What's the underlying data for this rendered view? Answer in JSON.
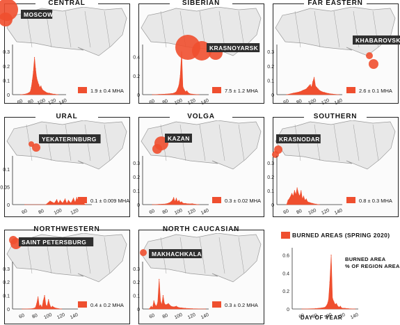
{
  "colors": {
    "burn": "#ef4f2f",
    "land": "#e8e8e8",
    "border": "#9a9a9a",
    "city_bg": "#2f2f2f"
  },
  "chart_data": [
    {
      "type": "area",
      "region": "CENTRAL",
      "city": "MOSCOW",
      "area_label": "1.9 ± 0.4 MHA",
      "x_ticks": [
        "60",
        "80",
        "100",
        "120",
        "140"
      ],
      "y_ticks": [
        "0",
        "0.1",
        "0.2",
        "0.3"
      ],
      "xlim": [
        45,
        145
      ],
      "ylim": [
        0,
        0.33
      ],
      "x": [
        60,
        70,
        75,
        78,
        80,
        82,
        84,
        86,
        88,
        90,
        92,
        94,
        96,
        98,
        100,
        102,
        104,
        106,
        108,
        110,
        114,
        118,
        124,
        130
      ],
      "values": [
        0,
        0.005,
        0.012,
        0.02,
        0.05,
        0.1,
        0.16,
        0.26,
        0.18,
        0.12,
        0.09,
        0.07,
        0.05,
        0.06,
        0.04,
        0.03,
        0.025,
        0.02,
        0.015,
        0.012,
        0.01,
        0.006,
        0.003,
        0
      ]
    },
    {
      "type": "area",
      "region": "SIBERIAN",
      "city": "KRASNOYARSK",
      "area_label": "7.5 ± 1.2 MHA",
      "x_ticks": [
        "60",
        "80",
        "100",
        "120",
        "140"
      ],
      "y_ticks": [
        "0",
        "0.2",
        "0.4"
      ],
      "xlim": [
        45,
        145
      ],
      "ylim": [
        0,
        0.5
      ],
      "x": [
        60,
        70,
        80,
        88,
        92,
        96,
        98,
        100,
        102,
        104,
        106,
        108,
        110,
        112,
        114,
        116,
        120,
        130
      ],
      "values": [
        0,
        0.003,
        0.006,
        0.01,
        0.015,
        0.03,
        0.06,
        0.1,
        0.2,
        0.45,
        0.08,
        0.05,
        0.03,
        0.04,
        0.02,
        0.01,
        0.005,
        0
      ]
    },
    {
      "type": "area",
      "region": "FAR EASTERN",
      "city": "KHABAROVSK",
      "area_label": "2.6 ± 0.1 MHA",
      "x_ticks": [
        "60",
        "80",
        "100",
        "120",
        "140"
      ],
      "y_ticks": [
        "0",
        "0.1",
        "0.2",
        "0.3"
      ],
      "xlim": [
        45,
        145
      ],
      "ylim": [
        0,
        0.33
      ],
      "x": [
        60,
        70,
        80,
        85,
        90,
        92,
        94,
        96,
        98,
        100,
        102,
        104,
        106,
        108,
        110,
        114,
        118,
        124,
        130,
        140
      ],
      "values": [
        0,
        0.01,
        0.02,
        0.03,
        0.04,
        0.05,
        0.06,
        0.07,
        0.05,
        0.09,
        0.12,
        0.06,
        0.05,
        0.04,
        0.03,
        0.02,
        0.015,
        0.008,
        0.004,
        0
      ]
    },
    {
      "type": "area",
      "region": "URAL",
      "city": "YEKATERINBURG",
      "area_label": "0.1 ± 0.009 MHA",
      "x_ticks": [
        "60",
        "80",
        "100",
        "120"
      ],
      "y_ticks": [
        "0",
        "0.05",
        "0.1"
      ],
      "xlim": [
        45,
        140
      ],
      "ylim": [
        0,
        0.13
      ],
      "x": [
        60,
        85,
        90,
        95,
        98,
        100,
        102,
        105,
        108,
        110,
        112,
        115,
        118,
        120,
        122,
        125,
        128,
        132
      ],
      "values": [
        0,
        0,
        0.01,
        0.004,
        0.014,
        0.003,
        0.012,
        0.004,
        0.016,
        0.003,
        0.012,
        0.004,
        0.018,
        0.006,
        0.02,
        0.004,
        0.01,
        0
      ]
    },
    {
      "type": "area",
      "region": "VOLGA",
      "city": "KAZAN",
      "area_label": "0.3 ± 0.02 MHA",
      "x_ticks": [
        "60",
        "80",
        "100",
        "120",
        "140"
      ],
      "y_ticks": [
        "0",
        "0.1",
        "0.2",
        "0.3"
      ],
      "xlim": [
        45,
        145
      ],
      "ylim": [
        0,
        0.33
      ],
      "x": [
        60,
        70,
        80,
        85,
        88,
        90,
        92,
        94,
        96,
        98,
        100,
        102,
        104,
        106,
        110,
        115,
        120,
        125,
        130
      ],
      "values": [
        0,
        0.002,
        0.005,
        0.012,
        0.02,
        0.03,
        0.05,
        0.02,
        0.045,
        0.02,
        0.03,
        0.015,
        0.02,
        0.01,
        0.008,
        0.005,
        0.006,
        0.002,
        0
      ]
    },
    {
      "type": "area",
      "region": "SOUTHERN",
      "city": "KRASNODAR",
      "area_label": "0.8 ± 0.3 MHA",
      "x_ticks": [
        "60",
        "80",
        "100",
        "120",
        "140"
      ],
      "y_ticks": [
        "0",
        "0.1",
        "0.2",
        "0.3"
      ],
      "xlim": [
        45,
        145
      ],
      "ylim": [
        0,
        0.33
      ],
      "x": [
        60,
        62,
        65,
        68,
        70,
        72,
        74,
        76,
        78,
        80,
        82,
        84,
        86,
        88,
        90,
        92,
        95,
        100,
        105,
        110
      ],
      "values": [
        0,
        0.03,
        0.05,
        0.08,
        0.06,
        0.1,
        0.07,
        0.12,
        0.08,
        0.06,
        0.1,
        0.04,
        0.06,
        0.03,
        0.04,
        0.02,
        0.015,
        0.008,
        0.003,
        0
      ]
    },
    {
      "type": "area",
      "region": "NORTHWESTERN",
      "city": "SAINT PETERSBURG",
      "area_label": "0.4 ± 0.2 MHA",
      "x_ticks": [
        "60",
        "80",
        "100",
        "120",
        "140"
      ],
      "y_ticks": [
        "0",
        "0.1",
        "0.2",
        "0.3"
      ],
      "xlim": [
        45,
        145
      ],
      "ylim": [
        0,
        0.33
      ],
      "x": [
        60,
        75,
        80,
        82,
        84,
        86,
        88,
        90,
        92,
        94,
        96,
        98,
        100,
        102,
        104,
        106,
        110,
        115,
        120
      ],
      "values": [
        0,
        0.002,
        0.01,
        0.04,
        0.09,
        0.02,
        0.03,
        0.01,
        0.06,
        0.1,
        0.03,
        0.02,
        0.07,
        0.03,
        0.01,
        0.02,
        0.008,
        0.003,
        0
      ]
    },
    {
      "type": "area",
      "region": "NORTH CAUCASIAN",
      "city": "MAKHACHKALA",
      "area_label": "0.3 ± 0.2 MHA",
      "x_ticks": [
        "60",
        "80",
        "100",
        "120",
        "140"
      ],
      "y_ticks": [
        "0",
        "0.1",
        "0.2",
        "0.3"
      ],
      "xlim": [
        45,
        145
      ],
      "ylim": [
        0,
        0.33
      ],
      "x": [
        55,
        58,
        60,
        62,
        64,
        66,
        68,
        70,
        72,
        74,
        76,
        78,
        80,
        84,
        88,
        92,
        96,
        100,
        104,
        110,
        120,
        140
      ],
      "values": [
        0,
        0.02,
        0.01,
        0.06,
        0.03,
        0.02,
        0.05,
        0.22,
        0.06,
        0.03,
        0.1,
        0.04,
        0.03,
        0.04,
        0.02,
        0.015,
        0.02,
        0.01,
        0.008,
        0.005,
        0.002,
        0
      ]
    },
    {
      "type": "area",
      "region": "legend",
      "title": "BURNED AREAS (SPRING 2020)",
      "note_line1": "BURNED AREA",
      "note_line2": "% OF REGION AREA",
      "xlabel": "DAY OF YEAR",
      "x_ticks": [
        "60",
        "80",
        "100",
        "120",
        "140"
      ],
      "y_ticks": [
        "0",
        "0.2",
        "0.4",
        "0.6"
      ],
      "xlim": [
        45,
        145
      ],
      "ylim": [
        0,
        0.65
      ],
      "x": [
        60,
        80,
        90,
        95,
        98,
        100,
        102,
        104,
        106,
        108,
        110,
        112,
        114,
        116,
        118,
        120,
        125,
        130,
        140
      ],
      "values": [
        0,
        0.005,
        0.012,
        0.02,
        0.05,
        0.1,
        0.3,
        0.6,
        0.12,
        0.08,
        0.05,
        0.06,
        0.03,
        0.02,
        0.03,
        0.01,
        0.008,
        0.004,
        0
      ]
    }
  ]
}
